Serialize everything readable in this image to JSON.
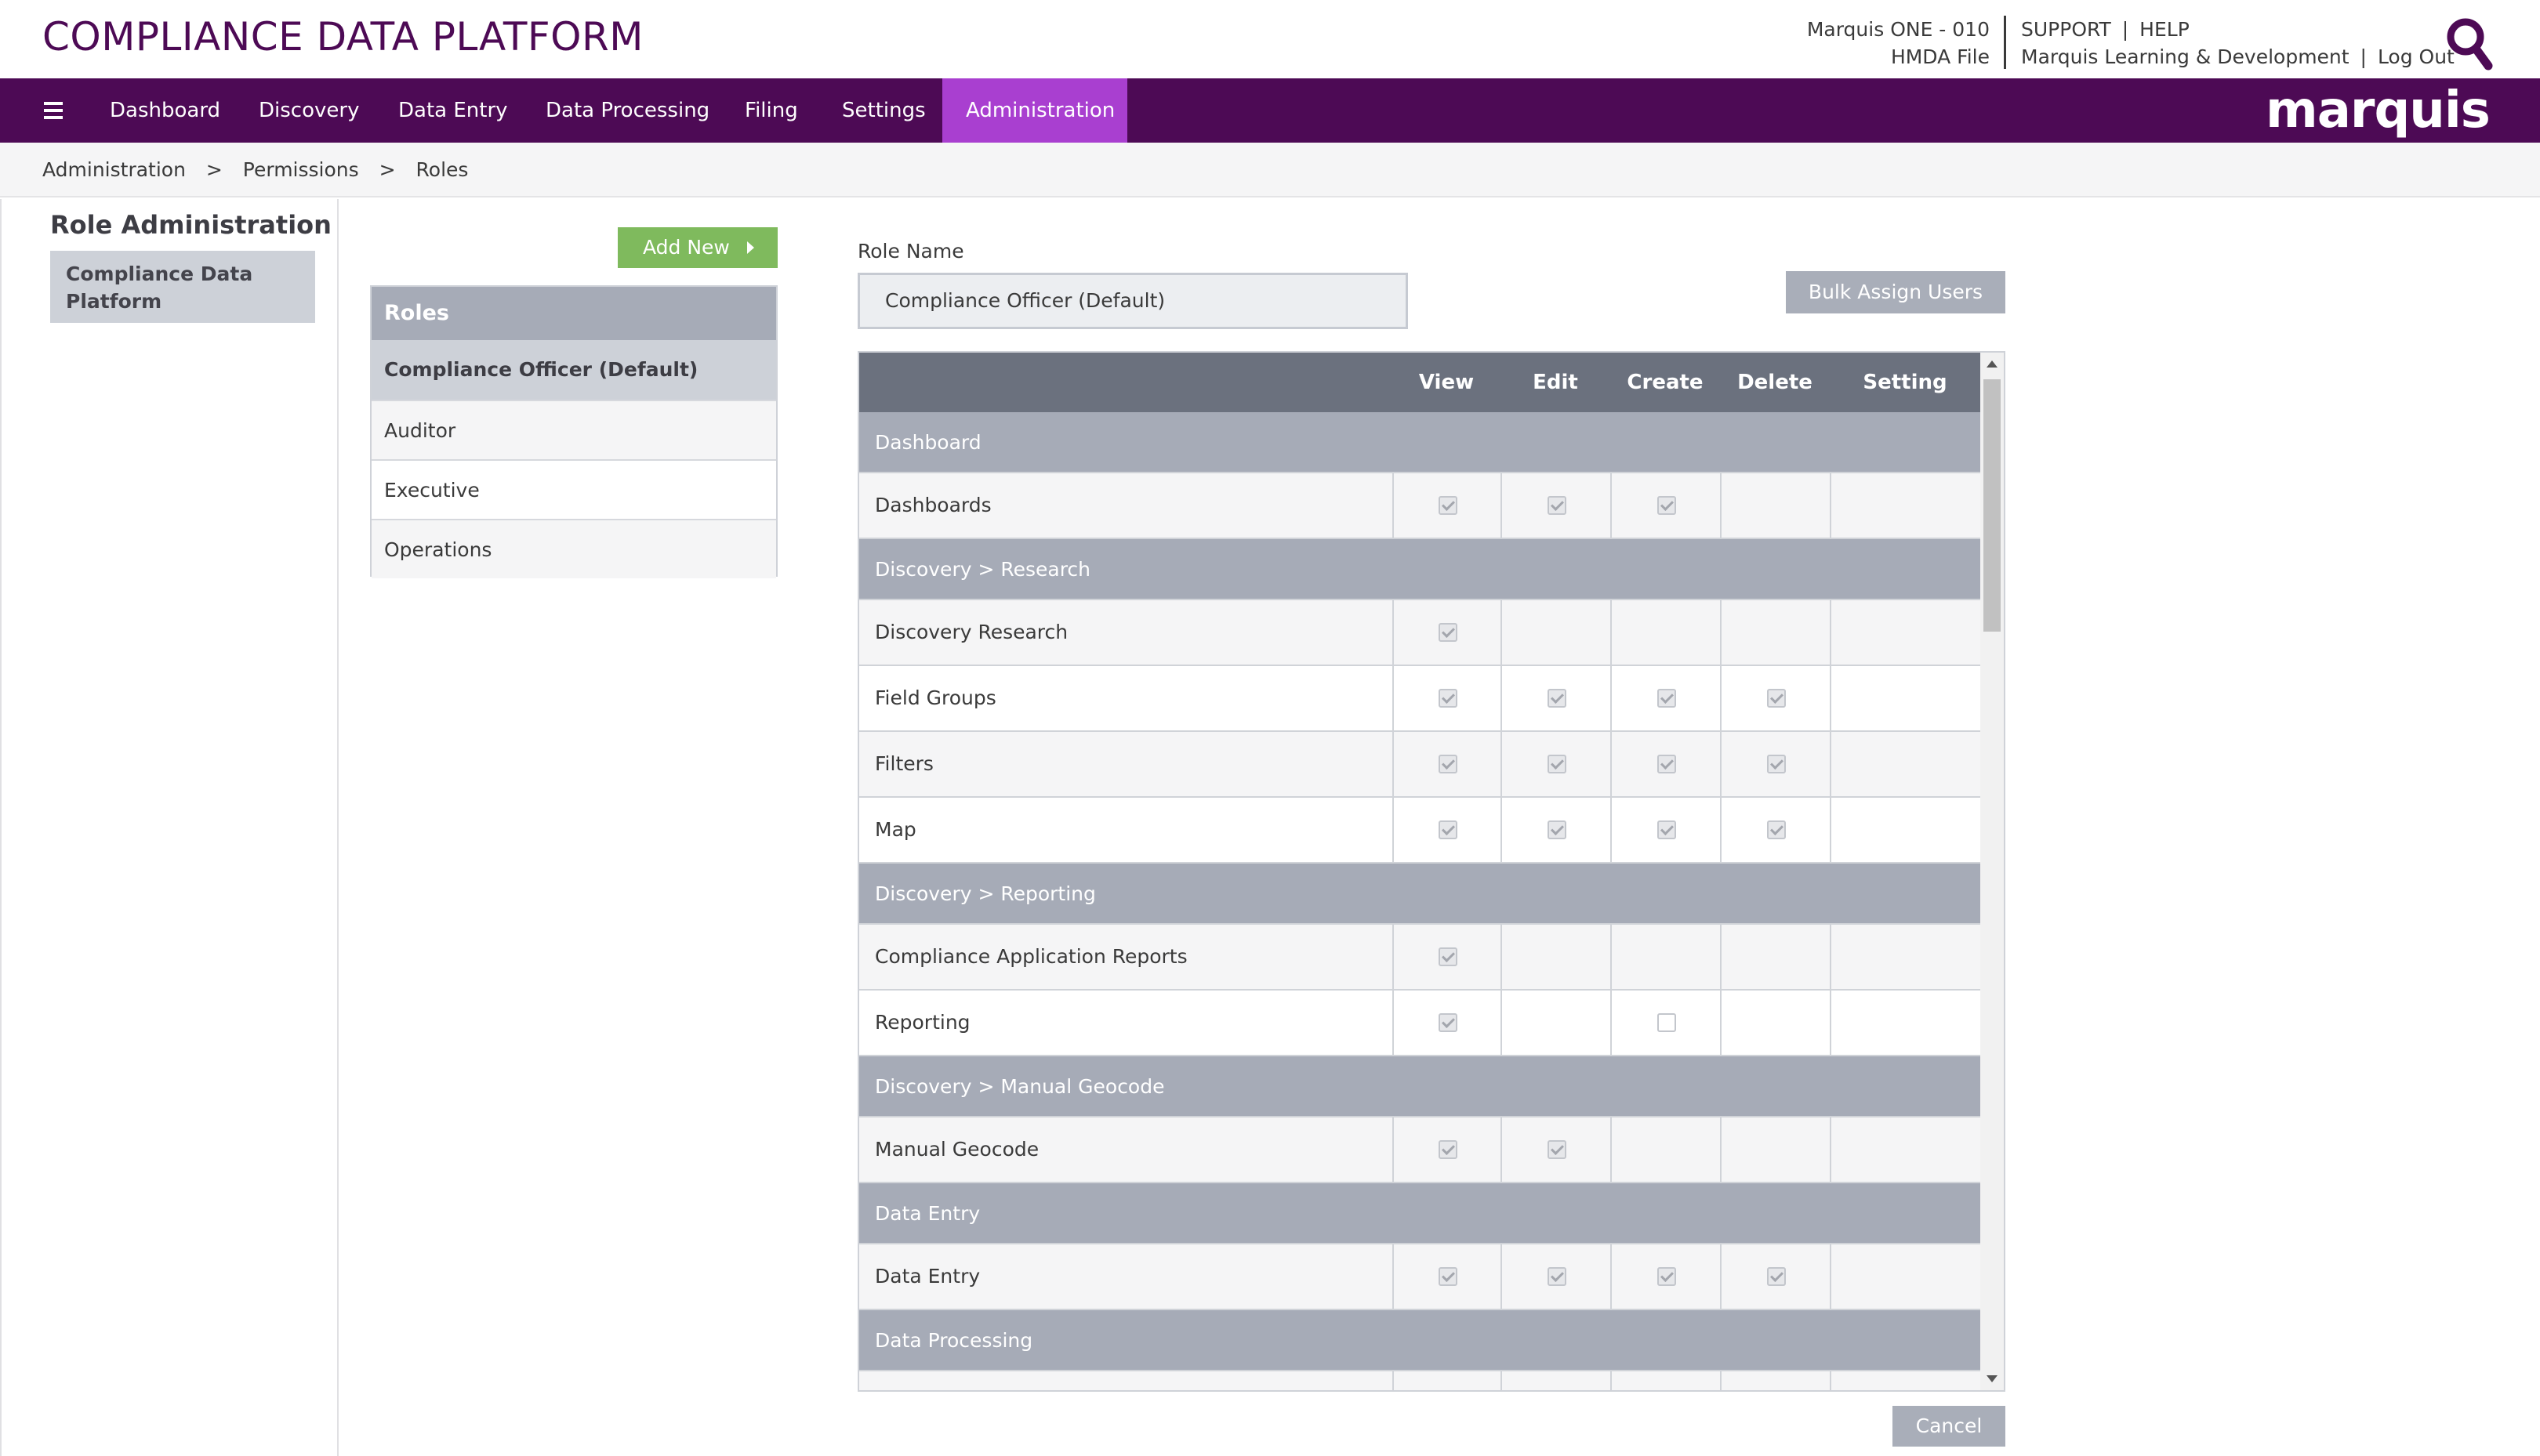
{
  "header": {
    "app_title": "COMPLIANCE DATA PLATFORM",
    "org_name": "Marquis ONE - 010",
    "file_name": "HMDA File",
    "support_label": "SUPPORT",
    "help_label": "HELP",
    "user_name": "Marquis Learning & Development",
    "logout_label": "Log Out",
    "separator": "|"
  },
  "nav": {
    "items": [
      {
        "label": "Dashboard"
      },
      {
        "label": "Discovery"
      },
      {
        "label": "Data Entry"
      },
      {
        "label": "Data Processing"
      },
      {
        "label": "Filing"
      },
      {
        "label": "Settings"
      },
      {
        "label": "Administration",
        "active": true
      }
    ],
    "brand": "marquis"
  },
  "breadcrumb": {
    "items": [
      "Administration",
      "Permissions",
      "Roles"
    ],
    "separator": ">"
  },
  "left_panel": {
    "title": "Role Administration",
    "item": "Compliance Data Platform"
  },
  "roles": {
    "add_new_label": "Add New",
    "header": "Roles",
    "items": [
      "Compliance Officer (Default)",
      "Auditor",
      "Executive",
      "Operations"
    ]
  },
  "role_form": {
    "role_name_label": "Role Name",
    "role_name_value": "Compliance Officer (Default)",
    "bulk_assign_label": "Bulk Assign Users",
    "cancel_label": "Cancel"
  },
  "permissions": {
    "columns": [
      "View",
      "Edit",
      "Create",
      "Delete",
      "Setting"
    ],
    "sections": [
      {
        "title": "Dashboard",
        "rows": [
          {
            "name": "Dashboards",
            "perms": [
              "on",
              "on",
              "on",
              "",
              ""
            ]
          }
        ]
      },
      {
        "title": "Discovery > Research",
        "rows": [
          {
            "name": "Discovery Research",
            "perms": [
              "on",
              "",
              "",
              "",
              ""
            ]
          },
          {
            "name": "Field Groups",
            "perms": [
              "on",
              "on",
              "on",
              "on",
              ""
            ]
          },
          {
            "name": "Filters",
            "perms": [
              "on",
              "on",
              "on",
              "on",
              ""
            ]
          },
          {
            "name": "Map",
            "perms": [
              "on",
              "on",
              "on",
              "on",
              ""
            ]
          }
        ]
      },
      {
        "title": "Discovery > Reporting",
        "rows": [
          {
            "name": "Compliance Application Reports",
            "perms": [
              "on",
              "",
              "",
              "",
              ""
            ]
          },
          {
            "name": "Reporting",
            "perms": [
              "on",
              "",
              "off",
              "",
              ""
            ]
          }
        ]
      },
      {
        "title": "Discovery > Manual Geocode",
        "rows": [
          {
            "name": "Manual Geocode",
            "perms": [
              "on",
              "on",
              "",
              "",
              ""
            ]
          }
        ]
      },
      {
        "title": "Data Entry",
        "rows": [
          {
            "name": "Data Entry",
            "perms": [
              "on",
              "on",
              "on",
              "on",
              ""
            ]
          }
        ]
      },
      {
        "title": "Data Processing",
        "rows": [
          {
            "name": "",
            "perms": [
              "on",
              "",
              "",
              "",
              ""
            ]
          }
        ]
      }
    ]
  }
}
